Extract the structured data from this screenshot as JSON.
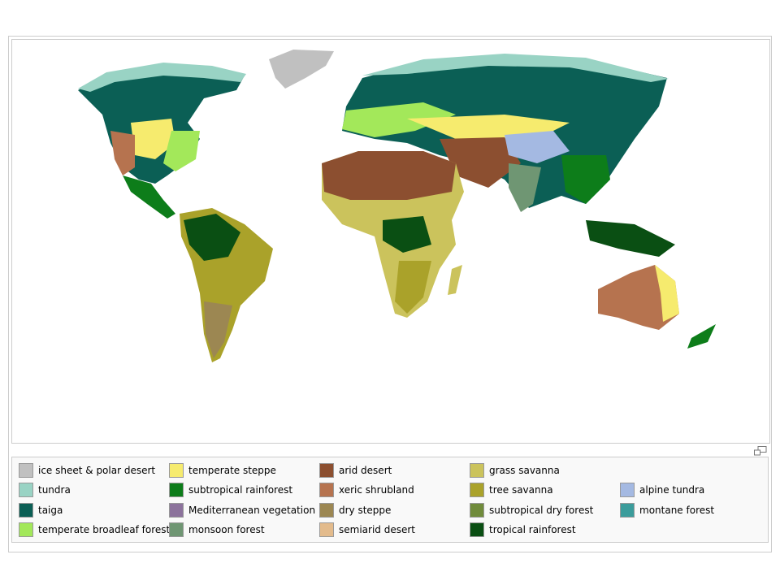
{
  "legend": {
    "columns": [
      [
        {
          "label": "ice sheet & polar desert",
          "color": "#c0c0c0"
        },
        {
          "label": "tundra",
          "color": "#99d3c4"
        },
        {
          "label": "taiga",
          "color": "#0b5f55"
        },
        {
          "label": "temperate broadleaf forest",
          "color": "#a3e85a"
        }
      ],
      [
        {
          "label": "temperate steppe",
          "color": "#f6eb6e"
        },
        {
          "label": "subtropical rainforest",
          "color": "#0d7d1a"
        },
        {
          "label": "Mediterranean vegetation",
          "color": "#8c729c"
        },
        {
          "label": "monsoon forest",
          "color": "#6f9673"
        }
      ],
      [
        {
          "label": "arid desert",
          "color": "#8c4f30"
        },
        {
          "label": "xeric shrubland",
          "color": "#b6734f"
        },
        {
          "label": "dry steppe",
          "color": "#9c8752"
        },
        {
          "label": "semiarid desert",
          "color": "#e3bb8c"
        }
      ],
      [
        {
          "label": "grass savanna",
          "color": "#cbc35c"
        },
        {
          "label": "tree savanna",
          "color": "#aaa22a"
        },
        {
          "label": "subtropical dry forest",
          "color": "#708b3b"
        },
        {
          "label": "tropical rainforest",
          "color": "#0a4f13"
        }
      ],
      [
        {
          "label": "alpine tundra",
          "color": "#a4b9e2"
        },
        {
          "label": "montane forest",
          "color": "#3b9c9b"
        }
      ]
    ]
  }
}
